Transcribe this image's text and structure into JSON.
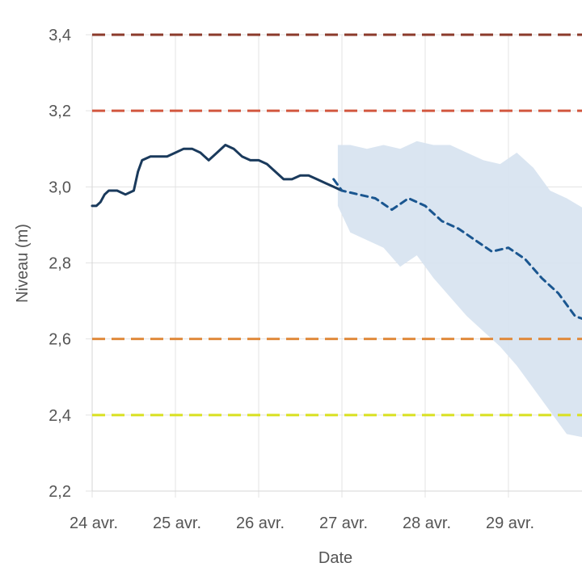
{
  "chart_data": {
    "type": "line",
    "title": "",
    "xlabel": "Date",
    "ylabel": "Niveau (m)",
    "ylim": [
      2.2,
      3.4
    ],
    "y_ticks": [
      "3,4",
      "3,2",
      "3,0",
      "2,8",
      "2,6",
      "2,4",
      "2,2"
    ],
    "y_tick_values": [
      3.4,
      3.2,
      3.0,
      2.8,
      2.6,
      2.4,
      2.2
    ],
    "x_ticks": [
      "24 avr.",
      "25 avr.",
      "26 avr.",
      "27 avr.",
      "28 avr.",
      "29 avr."
    ],
    "grid": true,
    "thresholds": [
      {
        "value": 3.4,
        "color": "#8b3a2b"
      },
      {
        "value": 3.2,
        "color": "#d2573f"
      },
      {
        "value": 2.6,
        "color": "#e08a3c"
      },
      {
        "value": 2.4,
        "color": "#d9e021"
      }
    ],
    "series": [
      {
        "style": "solid",
        "color": "#1a3a5c",
        "x": [
          0.0,
          0.05,
          0.1,
          0.15,
          0.2,
          0.3,
          0.4,
          0.5,
          0.55,
          0.6,
          0.7,
          0.8,
          0.9,
          1.0,
          1.1,
          1.2,
          1.3,
          1.4,
          1.5,
          1.6,
          1.7,
          1.8,
          1.9,
          2.0,
          2.1,
          2.2,
          2.3,
          2.4,
          2.5,
          2.6,
          2.7,
          2.8,
          2.9,
          3.0
        ],
        "y": [
          2.95,
          2.95,
          2.96,
          2.98,
          2.99,
          2.99,
          2.98,
          2.99,
          3.04,
          3.07,
          3.08,
          3.08,
          3.08,
          3.09,
          3.1,
          3.1,
          3.09,
          3.07,
          3.09,
          3.11,
          3.1,
          3.08,
          3.07,
          3.07,
          3.06,
          3.04,
          3.02,
          3.02,
          3.03,
          3.03,
          3.02,
          3.01,
          3.0,
          2.99
        ]
      },
      {
        "style": "dashed",
        "color": "#1a5690",
        "x": [
          2.9,
          3.0,
          3.2,
          3.4,
          3.6,
          3.8,
          4.0,
          4.2,
          4.4,
          4.6,
          4.8,
          5.0,
          5.2,
          5.4,
          5.6,
          5.8,
          5.93
        ],
        "y": [
          3.02,
          2.99,
          2.98,
          2.97,
          2.94,
          2.97,
          2.95,
          2.91,
          2.89,
          2.86,
          2.83,
          2.84,
          2.81,
          2.76,
          2.72,
          2.66,
          2.65
        ]
      }
    ],
    "band": {
      "color": "#d6e2ef",
      "x": [
        2.95,
        3.1,
        3.3,
        3.5,
        3.7,
        3.9,
        4.1,
        4.3,
        4.5,
        4.7,
        4.9,
        5.1,
        5.3,
        5.5,
        5.7,
        5.93
      ],
      "upper": [
        3.11,
        3.11,
        3.1,
        3.11,
        3.1,
        3.12,
        3.11,
        3.11,
        3.09,
        3.07,
        3.06,
        3.09,
        3.05,
        2.99,
        2.97,
        2.94
      ],
      "lower": [
        2.95,
        2.88,
        2.86,
        2.84,
        2.79,
        2.82,
        2.76,
        2.71,
        2.66,
        2.62,
        2.58,
        2.53,
        2.47,
        2.41,
        2.35,
        2.34
      ]
    }
  }
}
